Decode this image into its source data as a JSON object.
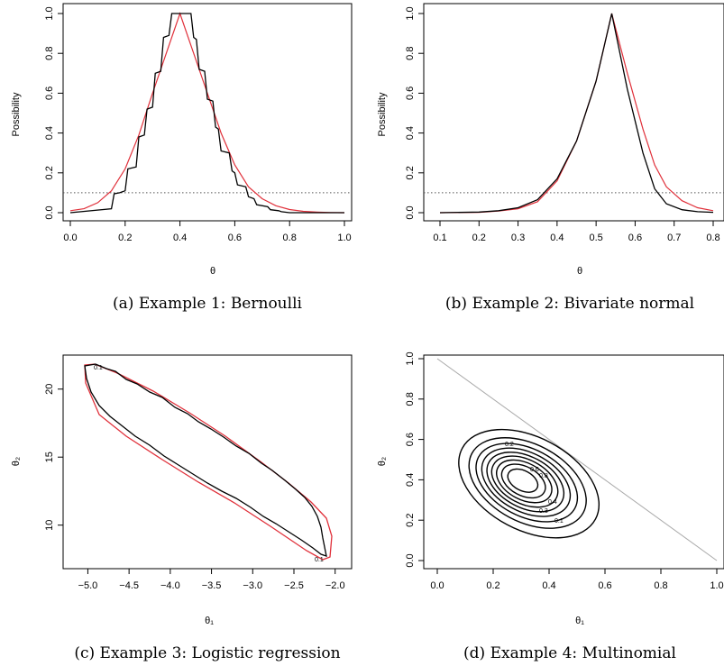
{
  "colors": {
    "empirical": "#000000",
    "approx": "#e0303a",
    "refline": "#555555",
    "simplex": "#aaaaaa"
  },
  "chart_data": [
    {
      "type": "line",
      "caption": "(a) Example 1: Bernoulli",
      "xlabel": "θ",
      "ylabel": "Possibility",
      "xlim": [
        0,
        1
      ],
      "ylim": [
        0,
        1
      ],
      "xticks": [
        "0.0",
        "0.2",
        "0.4",
        "0.6",
        "0.8",
        "1.0"
      ],
      "yticks": [
        "0.0",
        "0.2",
        "0.4",
        "0.6",
        "0.8",
        "1.0"
      ],
      "reference_line": 0.1,
      "series": [
        {
          "role": "empirical",
          "x": [
            0.0,
            0.15,
            0.16,
            0.18,
            0.2,
            0.21,
            0.24,
            0.25,
            0.27,
            0.28,
            0.3,
            0.31,
            0.33,
            0.34,
            0.36,
            0.37,
            0.44,
            0.45,
            0.46,
            0.47,
            0.49,
            0.5,
            0.52,
            0.53,
            0.54,
            0.55,
            0.58,
            0.59,
            0.6,
            0.61,
            0.64,
            0.65,
            0.67,
            0.68,
            0.72,
            0.73,
            0.76,
            0.77,
            0.8,
            1.0
          ],
          "y": [
            0.0,
            0.02,
            0.095,
            0.1,
            0.11,
            0.22,
            0.23,
            0.38,
            0.39,
            0.52,
            0.53,
            0.7,
            0.71,
            0.88,
            0.89,
            1.0,
            1.0,
            0.88,
            0.87,
            0.72,
            0.71,
            0.57,
            0.56,
            0.43,
            0.42,
            0.31,
            0.3,
            0.21,
            0.2,
            0.14,
            0.13,
            0.08,
            0.07,
            0.04,
            0.03,
            0.015,
            0.01,
            0.005,
            0.0,
            0.0
          ]
        },
        {
          "role": "approx",
          "x": [
            0.0,
            0.05,
            0.1,
            0.15,
            0.2,
            0.25,
            0.3,
            0.35,
            0.4,
            0.45,
            0.5,
            0.55,
            0.6,
            0.65,
            0.7,
            0.75,
            0.8,
            0.85,
            0.9,
            0.95,
            1.0
          ],
          "y": [
            0.01,
            0.02,
            0.05,
            0.11,
            0.22,
            0.39,
            0.6,
            0.8,
            1.0,
            0.8,
            0.6,
            0.4,
            0.24,
            0.13,
            0.07,
            0.035,
            0.016,
            0.007,
            0.003,
            0.001,
            0.0
          ]
        }
      ]
    },
    {
      "type": "line",
      "caption": "(b) Example 2: Bivariate normal",
      "xlabel": "θ",
      "ylabel": "Possibility",
      "xlim": [
        0.1,
        0.8
      ],
      "ylim": [
        0,
        1
      ],
      "xticks": [
        "0.1",
        "0.2",
        "0.3",
        "0.4",
        "0.5",
        "0.6",
        "0.7",
        "0.8"
      ],
      "yticks": [
        "0.0",
        "0.2",
        "0.4",
        "0.6",
        "0.8",
        "1.0"
      ],
      "reference_line": 0.1,
      "series": [
        {
          "role": "empirical",
          "x": [
            0.1,
            0.2,
            0.25,
            0.3,
            0.35,
            0.4,
            0.45,
            0.5,
            0.54,
            0.58,
            0.62,
            0.65,
            0.68,
            0.72,
            0.76,
            0.8
          ],
          "y": [
            0.0,
            0.003,
            0.01,
            0.025,
            0.065,
            0.17,
            0.36,
            0.66,
            1.0,
            0.62,
            0.3,
            0.12,
            0.045,
            0.015,
            0.005,
            0.002
          ]
        },
        {
          "role": "approx",
          "x": [
            0.1,
            0.2,
            0.25,
            0.3,
            0.35,
            0.4,
            0.45,
            0.5,
            0.54,
            0.58,
            0.62,
            0.65,
            0.68,
            0.72,
            0.76,
            0.8
          ],
          "y": [
            0.0,
            0.002,
            0.008,
            0.02,
            0.055,
            0.16,
            0.36,
            0.66,
            1.0,
            0.7,
            0.42,
            0.24,
            0.13,
            0.06,
            0.025,
            0.01
          ]
        }
      ]
    },
    {
      "type": "contour",
      "caption": "(c) Example 3: Logistic regression",
      "xlabel": "θ₁",
      "ylabel": "θ₂",
      "xlim": [
        -5.3,
        -1.8
      ],
      "ylim": [
        6.8,
        22.5
      ],
      "xticks": [
        "−5.0",
        "−4.5",
        "−4.0",
        "−3.5",
        "−3.0",
        "−2.5",
        "−2.0"
      ],
      "yticks": [
        "10",
        "15",
        "20"
      ],
      "contour_labels": [
        "0.1",
        "0.1"
      ],
      "contour_level": 0.1
    },
    {
      "type": "contour",
      "caption": "(d) Example 4: Multinomial",
      "xlabel": "θ₁",
      "ylabel": "θ₂",
      "xlim": [
        0,
        1
      ],
      "ylim": [
        0,
        1
      ],
      "xticks": [
        "0.0",
        "0.2",
        "0.4",
        "0.6",
        "0.8",
        "1.0"
      ],
      "yticks": [
        "0.0",
        "0.2",
        "0.4",
        "0.6",
        "0.8",
        "1.0"
      ],
      "contour_levels": [
        0.1,
        0.2,
        0.3,
        0.4,
        0.5,
        0.6,
        0.7,
        0.8,
        0.9
      ],
      "contour_labels": [
        "0.2",
        "0.6",
        "0.8",
        "0.4",
        "0.3",
        "0.1"
      ],
      "mode": [
        0.3,
        0.4
      ]
    }
  ]
}
